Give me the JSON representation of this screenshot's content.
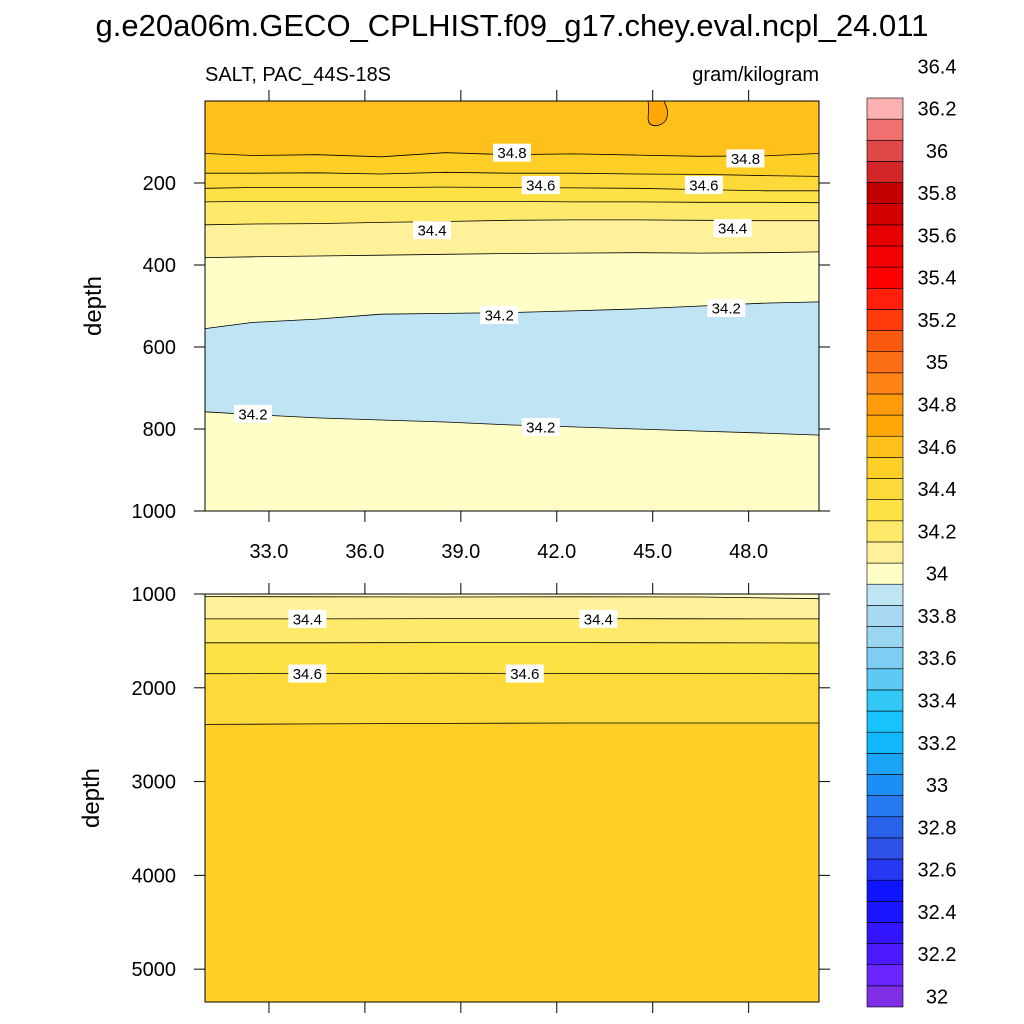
{
  "title": "g.e20a06m.GECO_CPLHIST.f09_g17.chey.eval.ncpl_24.011",
  "subtitle_left": "SALT, PAC_44S-18S",
  "subtitle_right": "gram/kilogram",
  "chart_data": [
    {
      "type": "contour",
      "panel": "upper",
      "xlabel": "",
      "ylabel": "depth",
      "xlim": [
        31.0,
        50.2
      ],
      "ylim": [
        1000,
        0
      ],
      "x_ticks": [
        33.0,
        36.0,
        39.0,
        42.0,
        45.0,
        48.0
      ],
      "x_tick_labels": [
        "33.0",
        "36.0",
        "39.0",
        "42.0",
        "45.0",
        "48.0"
      ],
      "y_ticks": [
        200,
        400,
        600,
        800,
        1000
      ],
      "y_tick_labels": [
        "200",
        "400",
        "600",
        "800",
        "1000"
      ],
      "contour_x": [
        31.0,
        32.5,
        34.5,
        36.5,
        38.5,
        40.5,
        42.5,
        44.5,
        46.5,
        48.5,
        50.2
      ],
      "bands": [
        {
          "lower": 34.8,
          "upper": 35.0,
          "color": "#fec01b",
          "top": null,
          "bottom": "c_34.8"
        },
        {
          "lower": 34.7,
          "upper": 34.8,
          "color": "#fed027",
          "top": "c_34.8",
          "bottom": "c_34.7"
        },
        {
          "lower": 34.6,
          "upper": 34.7,
          "color": "#fed93a",
          "top": "c_34.7",
          "bottom": "c_34.6"
        },
        {
          "lower": 34.5,
          "upper": 34.6,
          "color": "#fee245",
          "top": "c_34.6",
          "bottom": "c_34.5"
        },
        {
          "lower": 34.4,
          "upper": 34.5,
          "color": "#fee96a",
          "top": "c_34.5",
          "bottom": "c_34.4"
        },
        {
          "lower": 34.3,
          "upper": 34.4,
          "color": "#fef19a",
          "top": "c_34.4",
          "bottom": "c_34.3"
        },
        {
          "lower": 34.2,
          "upper": 34.3,
          "color": "#fefec6",
          "top": "c_34.3",
          "bottom": "c_34.2a"
        },
        {
          "lower": 34.1,
          "upper": 34.2,
          "color": "#bfe4f4",
          "top": "c_34.2a",
          "bottom": "c_34.2b"
        },
        {
          "lower": 34.2,
          "upper": 34.3,
          "color": "#fefec6",
          "top": "c_34.2b",
          "bottom": null
        }
      ],
      "contours": [
        {
          "id": "c_34.8",
          "level": 34.8,
          "depth": [
            128,
            133,
            131,
            136,
            126,
            131,
            129,
            132,
            135,
            134,
            128
          ]
        },
        {
          "id": "c_34.7",
          "level": 34.7,
          "depth": [
            176,
            176,
            175,
            178,
            174,
            176,
            176,
            178,
            179,
            182,
            184
          ]
        },
        {
          "id": "c_34.6",
          "level": 34.6,
          "depth": [
            213,
            211,
            211,
            211,
            210,
            211,
            212,
            213,
            216,
            219,
            219
          ]
        },
        {
          "id": "c_34.5",
          "level": 34.5,
          "depth": [
            246,
            245,
            245,
            245,
            245,
            245,
            246,
            246,
            247,
            247,
            248
          ]
        },
        {
          "id": "c_34.4",
          "level": 34.4,
          "depth": [
            302,
            300,
            299,
            296,
            294,
            291,
            290,
            290,
            291,
            292,
            292
          ]
        },
        {
          "id": "c_34.3",
          "level": 34.3,
          "depth": [
            382,
            380,
            378,
            376,
            374,
            372,
            371,
            370,
            371,
            370,
            368
          ]
        },
        {
          "id": "c_34.2a",
          "level": 34.2,
          "depth": [
            555,
            540,
            532,
            520,
            518,
            516,
            512,
            507,
            500,
            493,
            490
          ]
        },
        {
          "id": "c_34.2b",
          "level": 34.2,
          "depth": [
            758,
            765,
            773,
            778,
            783,
            790,
            795,
            800,
            805,
            810,
            815
          ]
        }
      ],
      "contour_labels": [
        {
          "text": "34.8",
          "x": 40.6,
          "depth": 126
        },
        {
          "text": "34.8",
          "x": 47.9,
          "depth": 140
        },
        {
          "text": "34.6",
          "x": 41.5,
          "depth": 205
        },
        {
          "text": "34.6",
          "x": 46.6,
          "depth": 205
        },
        {
          "text": "34.4",
          "x": 38.1,
          "depth": 315
        },
        {
          "text": "34.4",
          "x": 47.5,
          "depth": 310
        },
        {
          "text": "34.2",
          "x": 40.2,
          "depth": 522
        },
        {
          "text": "34.2",
          "x": 47.3,
          "depth": 505
        },
        {
          "text": "34.2",
          "x": 32.5,
          "depth": 763
        },
        {
          "text": "34.2",
          "x": 41.5,
          "depth": 795
        }
      ]
    },
    {
      "type": "contour",
      "panel": "lower",
      "xlabel": "",
      "ylabel": "depth",
      "xlim": [
        31.0,
        50.2
      ],
      "ylim": [
        5350,
        1000
      ],
      "x_ticks": [
        33.0,
        36.0,
        39.0,
        42.0,
        45.0,
        48.0
      ],
      "y_ticks": [
        1000,
        2000,
        3000,
        4000,
        5000
      ],
      "y_tick_labels": [
        "1000",
        "2000",
        "3000",
        "4000",
        "5000"
      ],
      "contour_x": [
        31.0,
        34.5,
        38.5,
        42.5,
        46.5,
        50.2
      ],
      "bands": [
        {
          "lower": 34.2,
          "upper": 34.3,
          "color": "#fefec6",
          "top": null,
          "bottom": "d_34.3"
        },
        {
          "lower": 34.3,
          "upper": 34.4,
          "color": "#fef19a",
          "top": "d_34.3",
          "bottom": "d_34.4"
        },
        {
          "lower": 34.4,
          "upper": 34.5,
          "color": "#fee96a",
          "top": "d_34.4",
          "bottom": "d_34.5"
        },
        {
          "lower": 34.5,
          "upper": 34.6,
          "color": "#fee245",
          "top": "d_34.5",
          "bottom": "d_34.6"
        },
        {
          "lower": 34.6,
          "upper": 34.7,
          "color": "#fed93a",
          "top": "d_34.6",
          "bottom": "d_34.7"
        },
        {
          "lower": 34.7,
          "upper": 34.8,
          "color": "#fed027",
          "top": "d_34.7",
          "bottom": null
        }
      ],
      "contours": [
        {
          "id": "d_34.3",
          "level": 34.3,
          "depth": [
            1028,
            1030,
            1032,
            1030,
            1032,
            1050
          ]
        },
        {
          "id": "d_34.4",
          "level": 34.4,
          "depth": [
            1265,
            1265,
            1262,
            1262,
            1264,
            1265
          ]
        },
        {
          "id": "d_34.5",
          "level": 34.5,
          "depth": [
            1520,
            1520,
            1518,
            1518,
            1520,
            1522
          ]
        },
        {
          "id": "d_34.6",
          "level": 34.6,
          "depth": [
            1850,
            1848,
            1845,
            1848,
            1848,
            1850
          ]
        },
        {
          "id": "d_34.7",
          "level": 34.7,
          "depth": [
            2390,
            2385,
            2380,
            2375,
            2375,
            2375
          ]
        }
      ],
      "contour_labels": [
        {
          "text": "34.4",
          "x": 34.2,
          "depth": 1265
        },
        {
          "text": "34.4",
          "x": 43.3,
          "depth": 1265
        },
        {
          "text": "34.6",
          "x": 34.2,
          "depth": 1848
        },
        {
          "text": "34.6",
          "x": 41.0,
          "depth": 1848
        }
      ]
    }
  ],
  "colorbar": {
    "levels": [
      "32",
      "32.2",
      "32.4",
      "32.6",
      "32.8",
      "33",
      "33.2",
      "33.4",
      "33.6",
      "33.8",
      "34",
      "34.2",
      "34.4",
      "34.6",
      "34.8",
      "35",
      "35.2",
      "35.4",
      "35.6",
      "35.8",
      "36",
      "36.2",
      "36.4"
    ],
    "colors": [
      "#7f2ee6",
      "#6a26ff",
      "#4d1aff",
      "#3314ff",
      "#1a14ff",
      "#0f14ff",
      "#2738f2",
      "#2f52e6",
      "#2962ea",
      "#257af2",
      "#1c8ff7",
      "#1aa4f7",
      "#11b6fb",
      "#17c3fd",
      "#31c8f5",
      "#5ccaf4",
      "#7dcef2",
      "#9ad5f1",
      "#a7d9f2",
      "#bfe4f4",
      "#fefec6",
      "#fef19a",
      "#fee96a",
      "#fee245",
      "#fed93a",
      "#fed027",
      "#fec01b",
      "#fea706",
      "#ff9a0a",
      "#ff8316",
      "#fa6e15",
      "#fa5a0f",
      "#ff3b0a",
      "#ff1f0a",
      "#ff0000",
      "#f30000",
      "#e60000",
      "#d30000",
      "#c20000",
      "#d32626",
      "#e04848",
      "#f07070",
      "#fbb1b1"
    ]
  }
}
